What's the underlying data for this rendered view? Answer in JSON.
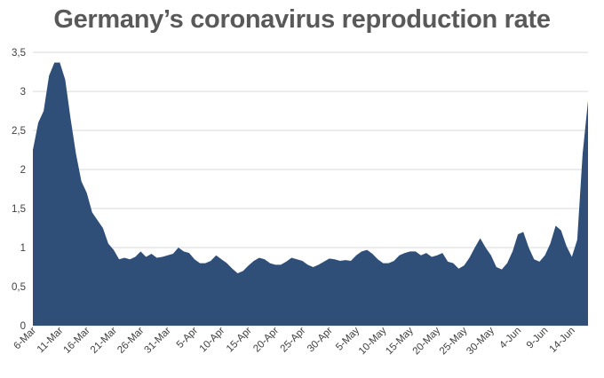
{
  "chart_data": {
    "type": "area",
    "title": "Germany’s coronavirus reproduction rate",
    "xlabel": "",
    "ylabel": "",
    "ylim": [
      0,
      3.5
    ],
    "yticks": [
      "0",
      "0,5",
      "1",
      "1,5",
      "2",
      "2,5",
      "3",
      "3,5"
    ],
    "ytick_values": [
      0,
      0.5,
      1,
      1.5,
      2,
      2.5,
      3,
      3.5
    ],
    "grid": true,
    "legend": "none",
    "colors": {
      "fill": "#2F4E78",
      "grid": "#D9D9D9",
      "axis_text": "#404040",
      "title": "#595959"
    },
    "xtick_labels": [
      "6-Mar",
      "11-Mar",
      "16-Mar",
      "21-Mar",
      "26-Mar",
      "31-Mar",
      "5-Apr",
      "10-Apr",
      "15-Apr",
      "20-Apr",
      "25-Apr",
      "30-Apr",
      "5-May",
      "10-May",
      "15-May",
      "20-May",
      "25-May",
      "30-May",
      "4-Jun",
      "9-Jun",
      "14-Jun"
    ],
    "x": [
      "6-Mar",
      "7-Mar",
      "8-Mar",
      "9-Mar",
      "10-Mar",
      "11-Mar",
      "12-Mar",
      "13-Mar",
      "14-Mar",
      "15-Mar",
      "16-Mar",
      "17-Mar",
      "18-Mar",
      "19-Mar",
      "20-Mar",
      "21-Mar",
      "22-Mar",
      "23-Mar",
      "24-Mar",
      "25-Mar",
      "26-Mar",
      "27-Mar",
      "28-Mar",
      "29-Mar",
      "30-Mar",
      "31-Mar",
      "1-Apr",
      "2-Apr",
      "3-Apr",
      "4-Apr",
      "5-Apr",
      "6-Apr",
      "7-Apr",
      "8-Apr",
      "9-Apr",
      "10-Apr",
      "11-Apr",
      "12-Apr",
      "13-Apr",
      "14-Apr",
      "15-Apr",
      "16-Apr",
      "17-Apr",
      "18-Apr",
      "19-Apr",
      "20-Apr",
      "21-Apr",
      "22-Apr",
      "23-Apr",
      "24-Apr",
      "25-Apr",
      "26-Apr",
      "27-Apr",
      "28-Apr",
      "29-Apr",
      "30-Apr",
      "1-May",
      "2-May",
      "3-May",
      "4-May",
      "5-May",
      "6-May",
      "7-May",
      "8-May",
      "9-May",
      "10-May",
      "11-May",
      "12-May",
      "13-May",
      "14-May",
      "15-May",
      "16-May",
      "17-May",
      "18-May",
      "19-May",
      "20-May",
      "21-May",
      "22-May",
      "23-May",
      "24-May",
      "25-May",
      "26-May",
      "27-May",
      "28-May",
      "29-May",
      "30-May",
      "31-May",
      "1-Jun",
      "2-Jun",
      "3-Jun",
      "4-Jun",
      "5-Jun",
      "6-Jun",
      "7-Jun",
      "8-Jun",
      "9-Jun",
      "10-Jun",
      "11-Jun",
      "12-Jun",
      "13-Jun",
      "14-Jun",
      "15-Jun",
      "16-Jun",
      "17-Jun"
    ],
    "values": [
      2.25,
      2.6,
      2.75,
      3.2,
      3.37,
      3.37,
      3.15,
      2.65,
      2.2,
      1.85,
      1.7,
      1.45,
      1.35,
      1.25,
      1.05,
      0.97,
      0.85,
      0.87,
      0.85,
      0.88,
      0.95,
      0.88,
      0.92,
      0.87,
      0.88,
      0.9,
      0.92,
      1.0,
      0.95,
      0.93,
      0.85,
      0.8,
      0.8,
      0.83,
      0.9,
      0.85,
      0.8,
      0.73,
      0.67,
      0.7,
      0.77,
      0.83,
      0.87,
      0.85,
      0.8,
      0.78,
      0.78,
      0.82,
      0.87,
      0.85,
      0.83,
      0.78,
      0.75,
      0.78,
      0.82,
      0.86,
      0.85,
      0.83,
      0.84,
      0.83,
      0.9,
      0.95,
      0.97,
      0.92,
      0.85,
      0.8,
      0.8,
      0.83,
      0.9,
      0.93,
      0.95,
      0.95,
      0.9,
      0.93,
      0.88,
      0.9,
      0.93,
      0.82,
      0.8,
      0.73,
      0.77,
      0.87,
      1.0,
      1.12,
      1.0,
      0.9,
      0.75,
      0.72,
      0.8,
      0.95,
      1.17,
      1.2,
      1.0,
      0.85,
      0.82,
      0.9,
      1.05,
      1.28,
      1.22,
      1.02,
      0.88,
      1.1,
      2.2,
      2.88
    ]
  }
}
